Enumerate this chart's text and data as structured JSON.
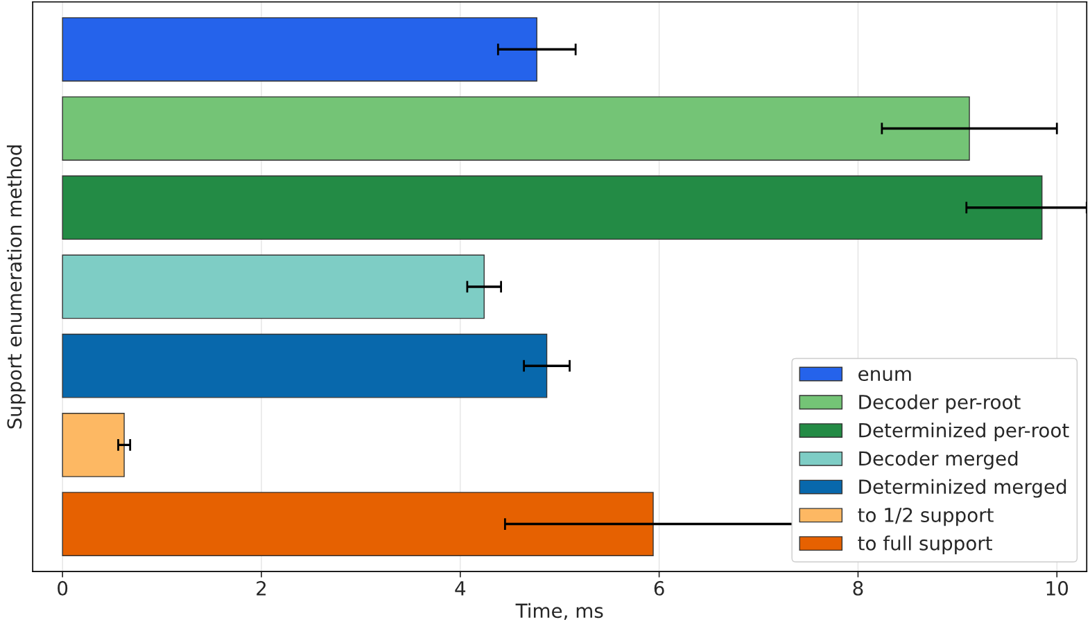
{
  "chart_data": {
    "type": "bar",
    "orientation": "horizontal",
    "xlabel": "Time, ms",
    "ylabel": "Support enumeration method",
    "categories": [
      null,
      null,
      null,
      null,
      null,
      null,
      null
    ],
    "series": [
      {
        "name": "enum",
        "color": "#2563eb",
        "values": [
          4.77,
          null,
          null,
          null,
          null,
          null,
          null
        ],
        "errors": [
          0.39,
          null,
          null,
          null,
          null,
          null,
          null
        ]
      },
      {
        "name": "Decoder per-root",
        "color": "#74c476",
        "values": [
          null,
          9.12,
          null,
          null,
          null,
          null,
          null
        ],
        "errors": [
          null,
          0.88,
          null,
          null,
          null,
          null,
          null
        ]
      },
      {
        "name": "Determinized per-root",
        "color": "#238b45",
        "values": [
          null,
          null,
          9.85,
          null,
          null,
          null,
          null
        ],
        "errors": [
          null,
          null,
          [
            9.09,
            10.3
          ],
          null,
          null,
          null,
          null
        ]
      },
      {
        "name": "Decoder merged",
        "color": "#7ecdc5",
        "values": [
          null,
          null,
          null,
          4.24,
          null,
          null,
          null
        ],
        "errors": [
          null,
          null,
          null,
          0.17,
          null,
          null,
          null
        ]
      },
      {
        "name": "Determinized merged",
        "color": "#0868ac",
        "values": [
          null,
          null,
          null,
          null,
          4.87,
          null,
          null
        ],
        "errors": [
          null,
          null,
          null,
          null,
          0.23,
          null,
          null
        ]
      },
      {
        "name": "to 1/2 support",
        "color": "#fdb863",
        "values": [
          null,
          null,
          null,
          null,
          null,
          0.62,
          null
        ],
        "errors": [
          null,
          null,
          null,
          null,
          null,
          0.06,
          null
        ]
      },
      {
        "name": "to full support",
        "color": "#e66101",
        "values": [
          null,
          null,
          null,
          null,
          null,
          null,
          5.94
        ],
        "errors": [
          null,
          null,
          null,
          null,
          null,
          null,
          1.49
        ]
      }
    ],
    "xlim": [
      -0.3,
      10.3
    ],
    "xticks": [
      0,
      2,
      4,
      6,
      8,
      10
    ],
    "grid": "x",
    "legend": "bottom right"
  }
}
